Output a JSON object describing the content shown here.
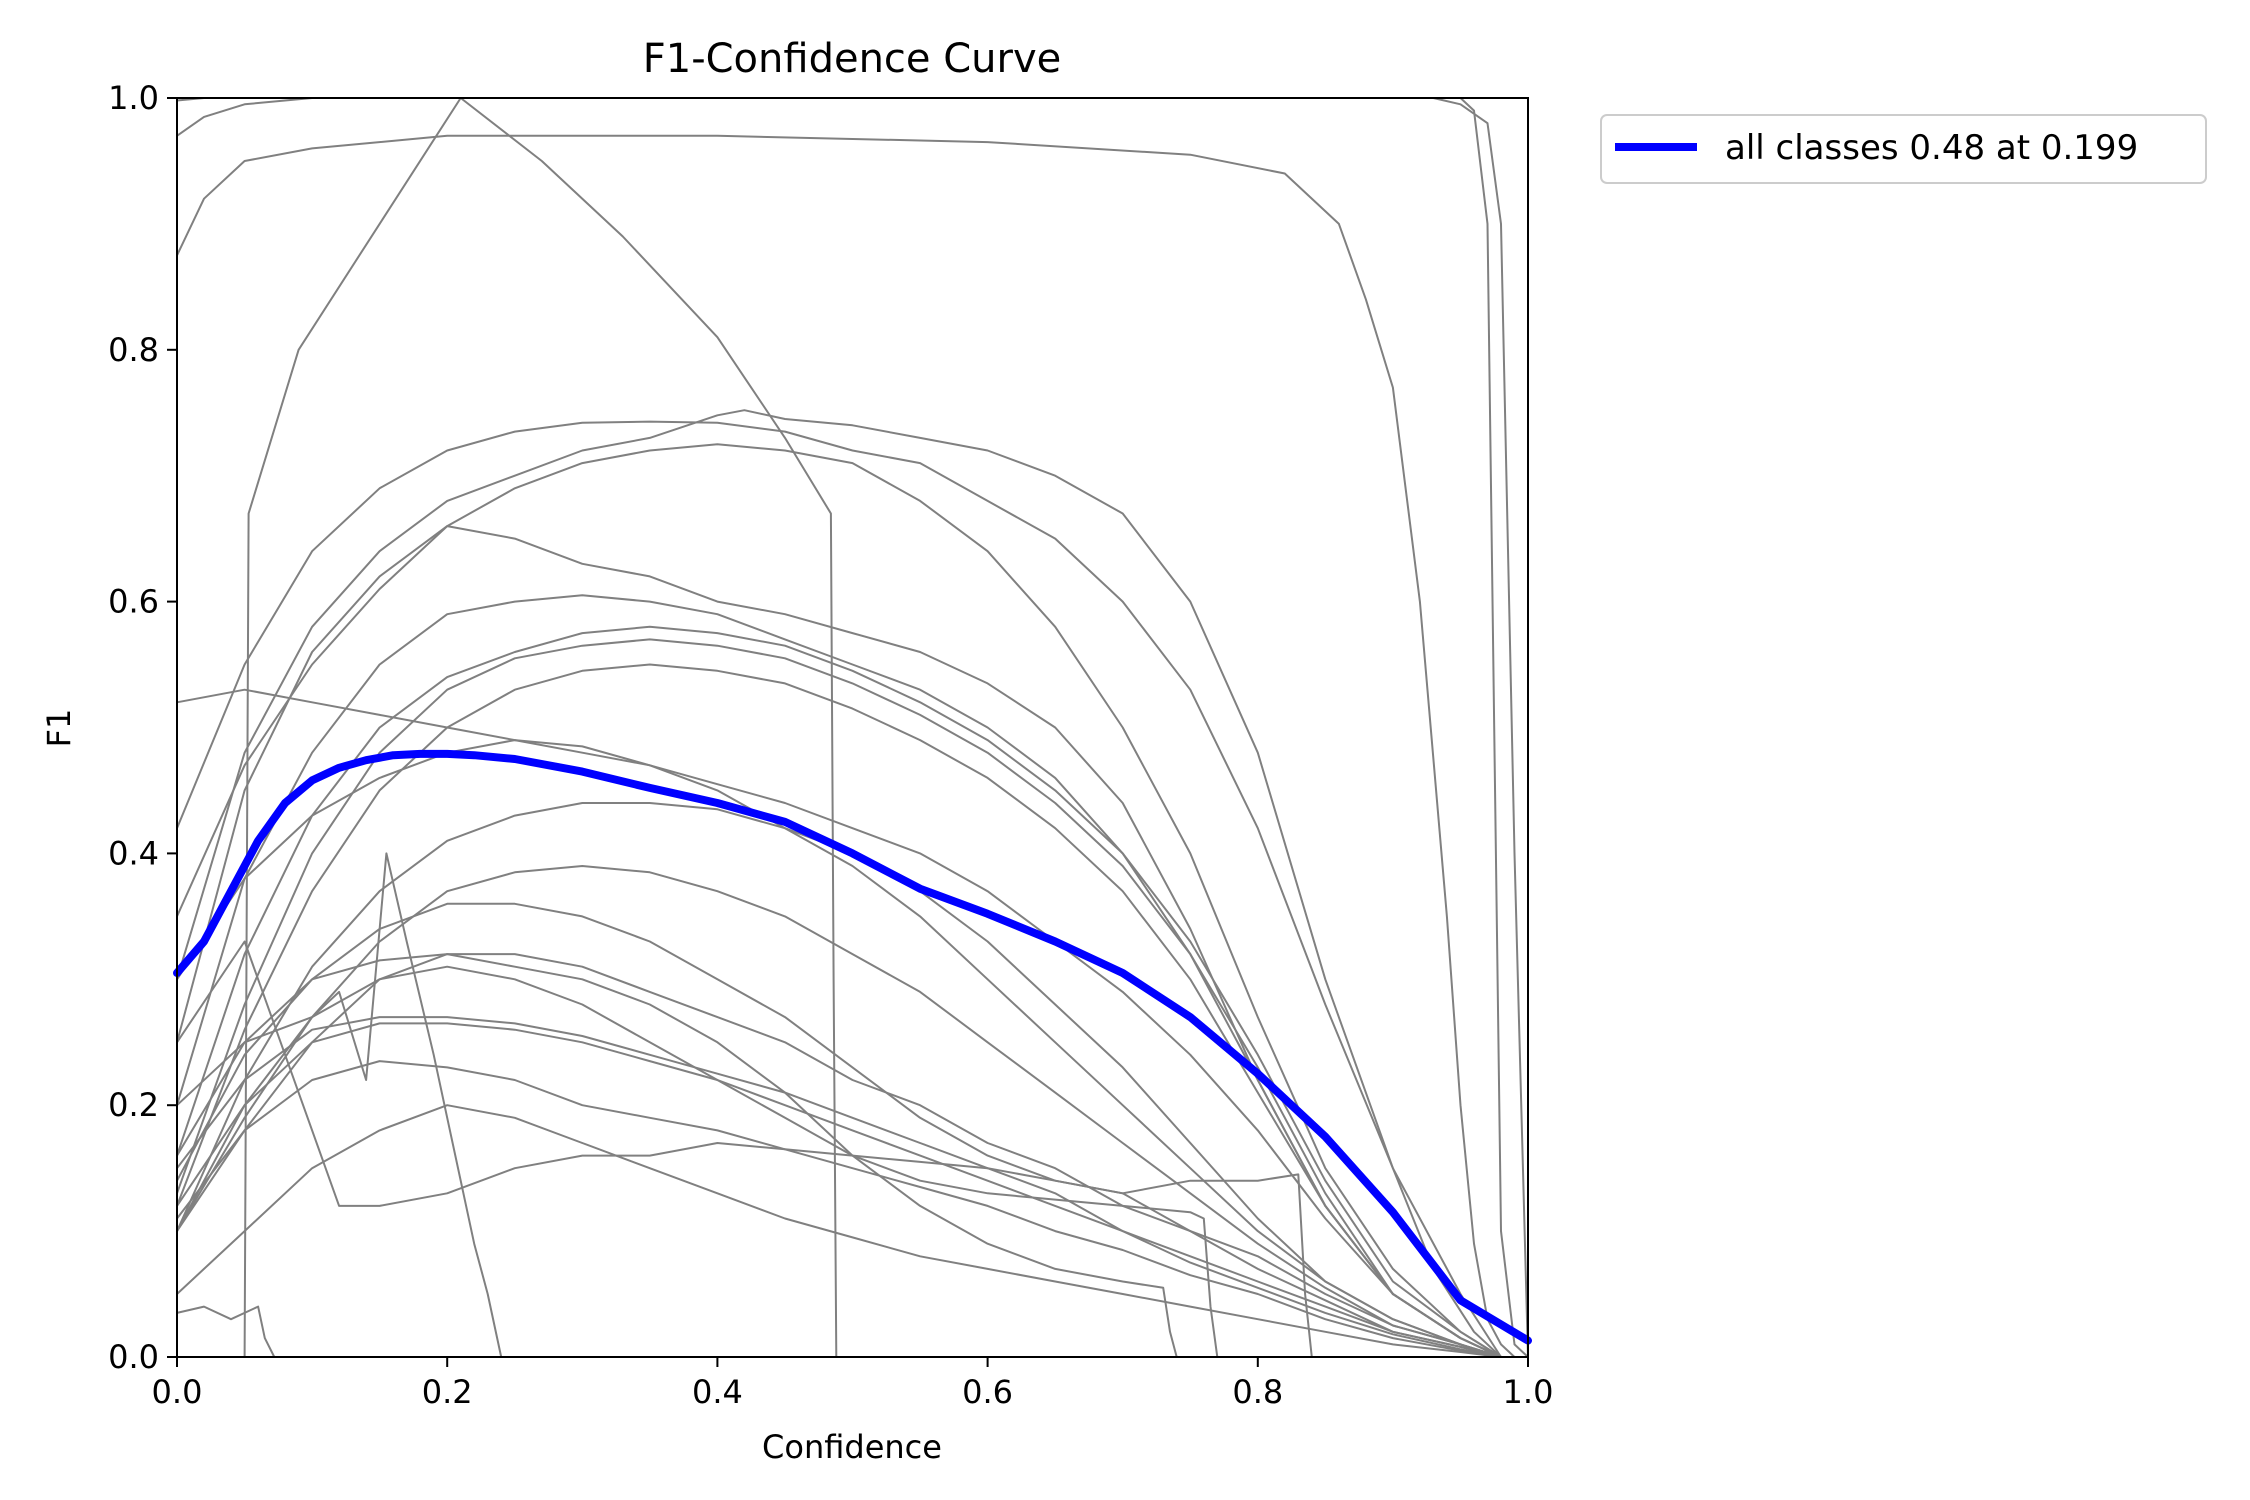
{
  "chart_data": {
    "type": "line",
    "title": "F1-Confidence Curve",
    "xlabel": "Confidence",
    "ylabel": "F1",
    "xlim": [
      0,
      1
    ],
    "ylim": [
      0,
      1
    ],
    "xticks": [
      "0.0",
      "0.2",
      "0.4",
      "0.6",
      "0.8",
      "1.0"
    ],
    "yticks": [
      "0.0",
      "0.2",
      "0.4",
      "0.6",
      "0.8",
      "1.0"
    ],
    "grid": false,
    "legend_position": "outside-top-right",
    "colors": {
      "class_curves": "#808080",
      "all_classes": "#0000ff"
    },
    "series": [
      {
        "name": "all classes 0.48 at 0.199",
        "highlight": true,
        "x": [
          0.0,
          0.02,
          0.04,
          0.06,
          0.08,
          0.1,
          0.12,
          0.14,
          0.16,
          0.18,
          0.2,
          0.22,
          0.25,
          0.3,
          0.35,
          0.4,
          0.45,
          0.5,
          0.55,
          0.6,
          0.65,
          0.7,
          0.75,
          0.8,
          0.85,
          0.9,
          0.95,
          1.0
        ],
        "y": [
          0.305,
          0.33,
          0.37,
          0.41,
          0.44,
          0.458,
          0.468,
          0.474,
          0.478,
          0.479,
          0.479,
          0.478,
          0.475,
          0.465,
          0.452,
          0.44,
          0.425,
          0.4,
          0.372,
          0.352,
          0.33,
          0.305,
          0.27,
          0.225,
          0.175,
          0.115,
          0.045,
          0.013
        ]
      },
      {
        "x": [
          0.0,
          0.02,
          0.05,
          0.1,
          0.2,
          0.4,
          0.6,
          0.8,
          0.9,
          0.95,
          0.96,
          0.97,
          0.975,
          0.98,
          0.99,
          1.0
        ],
        "y": [
          0.97,
          0.985,
          0.995,
          1.0,
          1.0,
          1.0,
          1.0,
          1.0,
          1.0,
          1.0,
          0.99,
          0.9,
          0.5,
          0.1,
          0.01,
          0.0
        ]
      },
      {
        "x": [
          0.0,
          0.02,
          0.05,
          0.1,
          0.2,
          0.4,
          0.6,
          0.8,
          0.88,
          0.93,
          0.95,
          0.97,
          0.98,
          0.99,
          1.0
        ],
        "y": [
          0.998,
          1.0,
          1.0,
          1.0,
          1.0,
          1.0,
          1.0,
          1.0,
          1.0,
          1.0,
          0.995,
          0.98,
          0.9,
          0.4,
          0.0
        ]
      },
      {
        "x": [
          0.0,
          0.02,
          0.05,
          0.1,
          0.2,
          0.4,
          0.6,
          0.75,
          0.82,
          0.86,
          0.88,
          0.9,
          0.92,
          0.94,
          0.95,
          0.96,
          0.97,
          0.98,
          0.99
        ],
        "y": [
          0.875,
          0.92,
          0.95,
          0.96,
          0.97,
          0.97,
          0.965,
          0.955,
          0.94,
          0.9,
          0.84,
          0.77,
          0.6,
          0.35,
          0.2,
          0.09,
          0.03,
          0.01,
          0.0
        ]
      },
      {
        "x": [
          0.05,
          0.053,
          0.09,
          0.15,
          0.21,
          0.27,
          0.33,
          0.4,
          0.45,
          0.484,
          0.486,
          0.488
        ],
        "y": [
          0.0,
          0.67,
          0.8,
          0.9,
          1.0,
          0.95,
          0.89,
          0.81,
          0.73,
          0.67,
          0.3,
          0.0
        ]
      },
      {
        "x": [
          0.0,
          0.05,
          0.1,
          0.15,
          0.2,
          0.25,
          0.3,
          0.35,
          0.4,
          0.45,
          0.5,
          0.55,
          0.6,
          0.65,
          0.7,
          0.75,
          0.8,
          0.85,
          0.9,
          0.93,
          0.96,
          0.98
        ],
        "y": [
          0.42,
          0.55,
          0.64,
          0.69,
          0.72,
          0.735,
          0.742,
          0.743,
          0.742,
          0.735,
          0.72,
          0.71,
          0.68,
          0.65,
          0.6,
          0.53,
          0.42,
          0.28,
          0.15,
          0.07,
          0.02,
          0.0
        ]
      },
      {
        "x": [
          0.0,
          0.05,
          0.1,
          0.15,
          0.2,
          0.25,
          0.3,
          0.35,
          0.4,
          0.42,
          0.45,
          0.5,
          0.55,
          0.6,
          0.65,
          0.7,
          0.75,
          0.8,
          0.85,
          0.9,
          0.95,
          0.98
        ],
        "y": [
          0.3,
          0.48,
          0.58,
          0.64,
          0.68,
          0.7,
          0.72,
          0.73,
          0.748,
          0.752,
          0.745,
          0.74,
          0.73,
          0.72,
          0.7,
          0.67,
          0.6,
          0.48,
          0.3,
          0.15,
          0.05,
          0.0
        ]
      },
      {
        "x": [
          0.0,
          0.05,
          0.1,
          0.15,
          0.2,
          0.25,
          0.3,
          0.35,
          0.4,
          0.45,
          0.5,
          0.55,
          0.6,
          0.65,
          0.7,
          0.75,
          0.8,
          0.85,
          0.9,
          0.95,
          0.98
        ],
        "y": [
          0.25,
          0.45,
          0.56,
          0.62,
          0.66,
          0.69,
          0.71,
          0.72,
          0.725,
          0.72,
          0.71,
          0.68,
          0.64,
          0.58,
          0.5,
          0.4,
          0.27,
          0.15,
          0.07,
          0.02,
          0.0
        ]
      },
      {
        "x": [
          0.0,
          0.05,
          0.1,
          0.15,
          0.2,
          0.25,
          0.3,
          0.35,
          0.4,
          0.45,
          0.5,
          0.55,
          0.6,
          0.65,
          0.7,
          0.75,
          0.8,
          0.85,
          0.9,
          0.95,
          0.98
        ],
        "y": [
          0.35,
          0.47,
          0.55,
          0.61,
          0.66,
          0.65,
          0.63,
          0.62,
          0.6,
          0.59,
          0.575,
          0.56,
          0.535,
          0.5,
          0.44,
          0.34,
          0.22,
          0.12,
          0.05,
          0.015,
          0.0
        ]
      },
      {
        "x": [
          0.0,
          0.05,
          0.1,
          0.15,
          0.2,
          0.25,
          0.3,
          0.35,
          0.4,
          0.45,
          0.5,
          0.55,
          0.6,
          0.65,
          0.7,
          0.75,
          0.8,
          0.85,
          0.9,
          0.95,
          0.98
        ],
        "y": [
          0.2,
          0.38,
          0.48,
          0.55,
          0.59,
          0.6,
          0.605,
          0.6,
          0.59,
          0.57,
          0.55,
          0.53,
          0.5,
          0.46,
          0.4,
          0.32,
          0.22,
          0.12,
          0.05,
          0.015,
          0.0
        ]
      },
      {
        "x": [
          0.0,
          0.05,
          0.1,
          0.15,
          0.2,
          0.25,
          0.3,
          0.35,
          0.4,
          0.45,
          0.5,
          0.55,
          0.6,
          0.65,
          0.7,
          0.75,
          0.8,
          0.85,
          0.9,
          0.95,
          0.98
        ],
        "y": [
          0.16,
          0.32,
          0.43,
          0.5,
          0.54,
          0.56,
          0.575,
          0.58,
          0.575,
          0.565,
          0.545,
          0.52,
          0.49,
          0.45,
          0.4,
          0.33,
          0.24,
          0.14,
          0.06,
          0.02,
          0.0
        ]
      },
      {
        "x": [
          0.0,
          0.05,
          0.1,
          0.15,
          0.2,
          0.25,
          0.3,
          0.35,
          0.4,
          0.45,
          0.5,
          0.55,
          0.6,
          0.65,
          0.7,
          0.75,
          0.8,
          0.85,
          0.9,
          0.95,
          0.98
        ],
        "y": [
          0.13,
          0.28,
          0.4,
          0.48,
          0.53,
          0.555,
          0.565,
          0.57,
          0.565,
          0.555,
          0.535,
          0.51,
          0.48,
          0.44,
          0.39,
          0.32,
          0.23,
          0.13,
          0.05,
          0.015,
          0.0
        ]
      },
      {
        "x": [
          0.0,
          0.05,
          0.1,
          0.15,
          0.2,
          0.25,
          0.3,
          0.35,
          0.4,
          0.45,
          0.5,
          0.55,
          0.6,
          0.65,
          0.7,
          0.75,
          0.8,
          0.85,
          0.9,
          0.95,
          0.98
        ],
        "y": [
          0.12,
          0.26,
          0.37,
          0.45,
          0.5,
          0.53,
          0.545,
          0.55,
          0.545,
          0.535,
          0.515,
          0.49,
          0.46,
          0.42,
          0.37,
          0.3,
          0.21,
          0.12,
          0.05,
          0.015,
          0.0
        ]
      },
      {
        "x": [
          0.0,
          0.05,
          0.1,
          0.15,
          0.2,
          0.25,
          0.3,
          0.35,
          0.4,
          0.45,
          0.5,
          0.55,
          0.6,
          0.65,
          0.7,
          0.75,
          0.8,
          0.85,
          0.9,
          0.95,
          0.98
        ],
        "y": [
          0.52,
          0.53,
          0.52,
          0.51,
          0.5,
          0.49,
          0.48,
          0.47,
          0.455,
          0.44,
          0.42,
          0.4,
          0.37,
          0.33,
          0.29,
          0.24,
          0.18,
          0.11,
          0.05,
          0.015,
          0.0
        ]
      },
      {
        "x": [
          0.0,
          0.05,
          0.1,
          0.15,
          0.2,
          0.25,
          0.3,
          0.35,
          0.4,
          0.45,
          0.5,
          0.55,
          0.6,
          0.65,
          0.7,
          0.75,
          0.8,
          0.85,
          0.9,
          0.95,
          0.98
        ],
        "y": [
          0.3,
          0.38,
          0.43,
          0.46,
          0.48,
          0.49,
          0.485,
          0.47,
          0.45,
          0.42,
          0.39,
          0.35,
          0.3,
          0.25,
          0.2,
          0.15,
          0.1,
          0.06,
          0.03,
          0.01,
          0.0
        ]
      },
      {
        "x": [
          0.0,
          0.05,
          0.1,
          0.15,
          0.2,
          0.25,
          0.3,
          0.35,
          0.4,
          0.45,
          0.5,
          0.55,
          0.6,
          0.65,
          0.7,
          0.75,
          0.8,
          0.85,
          0.9,
          0.95,
          0.98
        ],
        "y": [
          0.1,
          0.22,
          0.31,
          0.37,
          0.41,
          0.43,
          0.44,
          0.44,
          0.435,
          0.42,
          0.4,
          0.37,
          0.33,
          0.28,
          0.23,
          0.17,
          0.11,
          0.06,
          0.03,
          0.01,
          0.0
        ]
      },
      {
        "x": [
          0.0,
          0.05,
          0.1,
          0.15,
          0.2,
          0.25,
          0.3,
          0.35,
          0.4,
          0.45,
          0.5,
          0.55,
          0.6,
          0.65,
          0.7,
          0.75,
          0.8,
          0.85,
          0.9,
          0.95,
          0.98
        ],
        "y": [
          0.1,
          0.19,
          0.27,
          0.33,
          0.37,
          0.385,
          0.39,
          0.385,
          0.37,
          0.35,
          0.32,
          0.29,
          0.25,
          0.21,
          0.17,
          0.13,
          0.09,
          0.055,
          0.025,
          0.01,
          0.0
        ]
      },
      {
        "x": [
          0.0,
          0.05,
          0.1,
          0.15,
          0.2,
          0.25,
          0.3,
          0.35,
          0.4,
          0.45,
          0.5,
          0.55,
          0.6,
          0.65,
          0.7,
          0.75,
          0.8,
          0.85,
          0.9,
          0.95,
          0.98
        ],
        "y": [
          0.1,
          0.18,
          0.25,
          0.3,
          0.32,
          0.32,
          0.31,
          0.29,
          0.27,
          0.25,
          0.22,
          0.2,
          0.17,
          0.15,
          0.12,
          0.1,
          0.07,
          0.045,
          0.02,
          0.008,
          0.0
        ]
      },
      {
        "x": [
          0.0,
          0.05,
          0.1,
          0.15,
          0.2,
          0.25,
          0.3,
          0.35,
          0.4,
          0.45,
          0.5,
          0.55,
          0.6,
          0.65,
          0.7,
          0.75,
          0.8,
          0.85,
          0.9,
          0.95,
          0.98
        ],
        "y": [
          0.15,
          0.22,
          0.26,
          0.27,
          0.27,
          0.265,
          0.255,
          0.24,
          0.225,
          0.21,
          0.19,
          0.17,
          0.15,
          0.13,
          0.1,
          0.08,
          0.06,
          0.04,
          0.02,
          0.008,
          0.0
        ]
      },
      {
        "x": [
          0.0,
          0.05,
          0.1,
          0.15,
          0.2,
          0.25,
          0.3,
          0.35,
          0.4,
          0.45,
          0.5,
          0.55,
          0.6,
          0.65,
          0.7,
          0.75,
          0.8,
          0.85,
          0.9,
          0.95,
          0.98
        ],
        "y": [
          0.1,
          0.2,
          0.25,
          0.265,
          0.265,
          0.26,
          0.25,
          0.235,
          0.22,
          0.2,
          0.18,
          0.16,
          0.14,
          0.12,
          0.1,
          0.075,
          0.055,
          0.035,
          0.018,
          0.006,
          0.0
        ]
      },
      {
        "x": [
          0.0,
          0.05,
          0.1,
          0.15,
          0.2,
          0.25,
          0.3,
          0.35,
          0.4,
          0.45,
          0.5,
          0.55,
          0.6,
          0.65,
          0.7,
          0.75,
          0.8,
          0.85,
          0.9,
          0.95,
          0.98
        ],
        "y": [
          0.11,
          0.18,
          0.22,
          0.235,
          0.23,
          0.22,
          0.2,
          0.19,
          0.18,
          0.165,
          0.15,
          0.135,
          0.12,
          0.1,
          0.085,
          0.065,
          0.05,
          0.03,
          0.015,
          0.005,
          0.0
        ]
      },
      {
        "x": [
          0.0,
          0.05,
          0.08,
          0.12,
          0.15,
          0.2,
          0.25,
          0.3,
          0.35,
          0.4,
          0.45,
          0.5,
          0.55,
          0.6,
          0.65,
          0.7,
          0.75,
          0.8,
          0.85,
          0.9,
          0.95,
          0.98
        ],
        "y": [
          0.25,
          0.33,
          0.24,
          0.12,
          0.12,
          0.13,
          0.15,
          0.16,
          0.16,
          0.17,
          0.165,
          0.16,
          0.155,
          0.15,
          0.14,
          0.13,
          0.1,
          0.08,
          0.05,
          0.025,
          0.01,
          0.0
        ]
      },
      {
        "x": [
          0.0,
          0.05,
          0.1,
          0.15,
          0.2,
          0.25,
          0.3,
          0.35,
          0.4,
          0.45,
          0.5,
          0.55,
          0.6,
          0.65,
          0.7,
          0.75,
          0.8,
          0.85,
          0.9,
          0.95,
          0.98
        ],
        "y": [
          0.05,
          0.1,
          0.15,
          0.18,
          0.2,
          0.19,
          0.17,
          0.15,
          0.13,
          0.11,
          0.095,
          0.08,
          0.07,
          0.06,
          0.05,
          0.04,
          0.03,
          0.02,
          0.01,
          0.004,
          0.0
        ]
      },
      {
        "x": [
          0.0,
          0.05,
          0.1,
          0.12,
          0.14,
          0.155,
          0.17,
          0.19,
          0.2,
          0.21,
          0.22,
          0.23,
          0.24
        ],
        "y": [
          0.2,
          0.25,
          0.27,
          0.29,
          0.22,
          0.4,
          0.33,
          0.24,
          0.19,
          0.14,
          0.09,
          0.05,
          0.0
        ]
      },
      {
        "x": [
          0.0,
          0.02,
          0.04,
          0.06,
          0.065,
          0.072
        ],
        "y": [
          0.035,
          0.04,
          0.03,
          0.04,
          0.015,
          0.0
        ]
      },
      {
        "x": [
          0.0,
          0.05,
          0.1,
          0.15,
          0.2,
          0.25,
          0.3,
          0.35,
          0.4,
          0.45,
          0.5,
          0.55,
          0.6,
          0.65,
          0.7,
          0.73,
          0.735,
          0.74
        ],
        "y": [
          0.16,
          0.25,
          0.3,
          0.315,
          0.32,
          0.31,
          0.3,
          0.28,
          0.25,
          0.21,
          0.16,
          0.12,
          0.09,
          0.07,
          0.06,
          0.055,
          0.02,
          0.0
        ]
      },
      {
        "x": [
          0.0,
          0.05,
          0.1,
          0.15,
          0.2,
          0.25,
          0.3,
          0.35,
          0.4,
          0.45,
          0.5,
          0.55,
          0.6,
          0.65,
          0.7,
          0.75,
          0.8,
          0.83,
          0.835,
          0.84
        ],
        "y": [
          0.14,
          0.24,
          0.3,
          0.34,
          0.36,
          0.36,
          0.35,
          0.33,
          0.3,
          0.27,
          0.23,
          0.19,
          0.16,
          0.14,
          0.13,
          0.14,
          0.14,
          0.145,
          0.05,
          0.0
        ]
      },
      {
        "x": [
          0.0,
          0.05,
          0.1,
          0.15,
          0.2,
          0.25,
          0.3,
          0.35,
          0.4,
          0.45,
          0.5,
          0.55,
          0.6,
          0.65,
          0.7,
          0.75,
          0.76,
          0.765,
          0.77
        ],
        "y": [
          0.12,
          0.2,
          0.27,
          0.3,
          0.31,
          0.3,
          0.28,
          0.25,
          0.22,
          0.19,
          0.16,
          0.14,
          0.13,
          0.125,
          0.12,
          0.115,
          0.11,
          0.04,
          0.0
        ]
      }
    ]
  }
}
